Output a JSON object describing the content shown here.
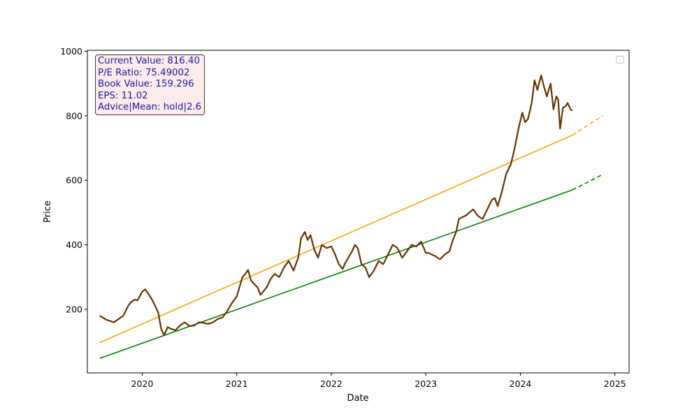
{
  "chart_data": {
    "type": "line",
    "xlabel": "Date",
    "ylabel": "Price",
    "xlim": [
      2019.42,
      2025.15
    ],
    "ylim": [
      3,
      1003
    ],
    "x_ticks": [
      2020,
      2021,
      2022,
      2023,
      2024,
      2025
    ],
    "x_tick_labels": [
      "2020",
      "2021",
      "2022",
      "2023",
      "2024",
      "2025"
    ],
    "y_ticks": [
      200,
      400,
      600,
      800,
      1000
    ],
    "y_tick_labels": [
      "200",
      "400",
      "600",
      "800",
      "1000"
    ],
    "grid": false,
    "legend": "upper right (empty)",
    "info_box": {
      "lines": [
        "Current Value: 816.40",
        "P/E Ratio: 75.49002",
        "Book Value: 159.296",
        "EPS: 11.02",
        "Advice|Mean: hold|2.6"
      ]
    },
    "series": [
      {
        "name": "price",
        "color": "#663300",
        "style": "solid",
        "x": [
          2019.55,
          2019.58,
          2019.62,
          2019.65,
          2019.7,
          2019.75,
          2019.8,
          2019.85,
          2019.88,
          2019.92,
          2019.95,
          2020.0,
          2020.03,
          2020.06,
          2020.1,
          2020.13,
          2020.17,
          2020.2,
          2020.23,
          2020.27,
          2020.3,
          2020.35,
          2020.4,
          2020.45,
          2020.5,
          2020.55,
          2020.6,
          2020.65,
          2020.7,
          2020.75,
          2020.8,
          2020.85,
          2020.9,
          2020.95,
          2021.0,
          2021.03,
          2021.06,
          2021.09,
          2021.12,
          2021.15,
          2021.18,
          2021.22,
          2021.25,
          2021.28,
          2021.32,
          2021.36,
          2021.4,
          2021.45,
          2021.5,
          2021.55,
          2021.6,
          2021.65,
          2021.68,
          2021.72,
          2021.75,
          2021.78,
          2021.82,
          2021.86,
          2021.9,
          2021.95,
          2022.0,
          2022.04,
          2022.08,
          2022.12,
          2022.15,
          2022.18,
          2022.22,
          2022.25,
          2022.28,
          2022.32,
          2022.36,
          2022.4,
          2022.45,
          2022.5,
          2022.55,
          2022.6,
          2022.65,
          2022.7,
          2022.75,
          2022.8,
          2022.85,
          2022.9,
          2022.95,
          2023.0,
          2023.03,
          2023.06,
          2023.1,
          2023.15,
          2023.2,
          2023.25,
          2023.28,
          2023.32,
          2023.35,
          2023.38,
          2023.42,
          2023.46,
          2023.5,
          2023.55,
          2023.6,
          2023.65,
          2023.7,
          2023.73,
          2023.76,
          2023.8,
          2023.85,
          2023.9,
          2023.94,
          2023.98,
          2024.02,
          2024.05,
          2024.08,
          2024.12,
          2024.15,
          2024.18,
          2024.22,
          2024.25,
          2024.28,
          2024.32,
          2024.35,
          2024.38,
          2024.4,
          2024.42,
          2024.45,
          2024.48,
          2024.5,
          2024.53,
          2024.55
        ],
        "y": [
          180,
          175,
          168,
          165,
          160,
          170,
          180,
          210,
          222,
          230,
          228,
          255,
          262,
          250,
          232,
          215,
          190,
          140,
          120,
          145,
          140,
          135,
          150,
          160,
          148,
          150,
          160,
          158,
          155,
          160,
          170,
          175,
          195,
          220,
          240,
          270,
          300,
          310,
          322,
          290,
          280,
          268,
          245,
          255,
          270,
          295,
          310,
          300,
          330,
          350,
          320,
          360,
          420,
          440,
          415,
          430,
          385,
          360,
          400,
          390,
          395,
          370,
          340,
          325,
          345,
          360,
          380,
          400,
          390,
          340,
          330,
          300,
          320,
          350,
          340,
          370,
          400,
          390,
          360,
          380,
          400,
          395,
          410,
          375,
          375,
          370,
          365,
          355,
          370,
          380,
          410,
          440,
          480,
          485,
          490,
          500,
          510,
          490,
          480,
          510,
          540,
          545,
          520,
          560,
          620,
          650,
          700,
          760,
          810,
          780,
          790,
          840,
          910,
          880,
          925,
          890,
          860,
          900,
          820,
          860,
          850,
          760,
          825,
          830,
          840,
          820,
          816
        ]
      },
      {
        "name": "orange trend",
        "color": "#ffa500",
        "style": "solid",
        "x": [
          2019.55,
          2024.55
        ],
        "y": [
          97,
          740
        ]
      },
      {
        "name": "orange trend forecast",
        "color": "#ffa500",
        "style": "dashed",
        "x": [
          2024.55,
          2024.87
        ],
        "y": [
          740,
          800
        ]
      },
      {
        "name": "green trend",
        "color": "#008000",
        "style": "solid",
        "x": [
          2019.55,
          2024.55
        ],
        "y": [
          48,
          570
        ]
      },
      {
        "name": "green trend forecast",
        "color": "#008000",
        "style": "dashed",
        "x": [
          2024.55,
          2024.87
        ],
        "y": [
          570,
          618
        ]
      }
    ]
  }
}
